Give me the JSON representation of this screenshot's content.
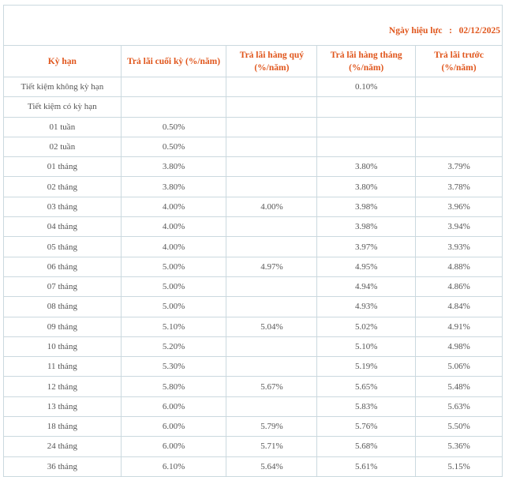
{
  "effective_date": {
    "label": "Ngày hiệu lực",
    "separator": ":",
    "value": "02/12/2025"
  },
  "columns": [
    "Kỳ hạn",
    "Trả lãi cuối  kỳ (%/năm)",
    "Trả lãi hàng quý (%/năm)",
    "Trả lãi hàng tháng (%/năm)",
    "Trả lãi trước (%/năm)"
  ],
  "rows": [
    [
      "Tiết kiệm không kỳ hạn",
      "",
      "",
      "0.10%",
      ""
    ],
    [
      "Tiết kiệm có kỳ hạn",
      "",
      "",
      "",
      ""
    ],
    [
      "01 tuần",
      "0.50%",
      "",
      "",
      ""
    ],
    [
      "02 tuần",
      "0.50%",
      "",
      "",
      ""
    ],
    [
      "01 tháng",
      "3.80%",
      "",
      "3.80%",
      "3.79%"
    ],
    [
      "02 tháng",
      "3.80%",
      "",
      "3.80%",
      "3.78%"
    ],
    [
      "03 tháng",
      "4.00%",
      "4.00%",
      "3.98%",
      "3.96%"
    ],
    [
      "04 tháng",
      "4.00%",
      "",
      "3.98%",
      "3.94%"
    ],
    [
      "05 tháng",
      "4.00%",
      "",
      "3.97%",
      "3.93%"
    ],
    [
      "06 tháng",
      "5.00%",
      "4.97%",
      "4.95%",
      "4.88%"
    ],
    [
      "07 tháng",
      "5.00%",
      "",
      "4.94%",
      "4.86%"
    ],
    [
      "08 tháng",
      "5.00%",
      "",
      "4.93%",
      "4.84%"
    ],
    [
      "09 tháng",
      "5.10%",
      "5.04%",
      "5.02%",
      "4.91%"
    ],
    [
      "10 tháng",
      "5.20%",
      "",
      "5.10%",
      "4.98%"
    ],
    [
      "11 tháng",
      "5.30%",
      "",
      "5.19%",
      "5.06%"
    ],
    [
      "12 tháng",
      "5.80%",
      "5.67%",
      "5.65%",
      "5.48%"
    ],
    [
      "13 tháng",
      "6.00%",
      "",
      "5.83%",
      "5.63%"
    ],
    [
      "18 tháng",
      "6.00%",
      "5.79%",
      "5.76%",
      "5.50%"
    ],
    [
      "24 tháng",
      "6.00%",
      "5.71%",
      "5.68%",
      "5.36%"
    ],
    [
      "36 tháng",
      "6.10%",
      "5.64%",
      "5.61%",
      "5.15%"
    ]
  ],
  "colors": {
    "header_text": "#e0561c",
    "border": "#cbd9df",
    "body_text": "#555555"
  }
}
